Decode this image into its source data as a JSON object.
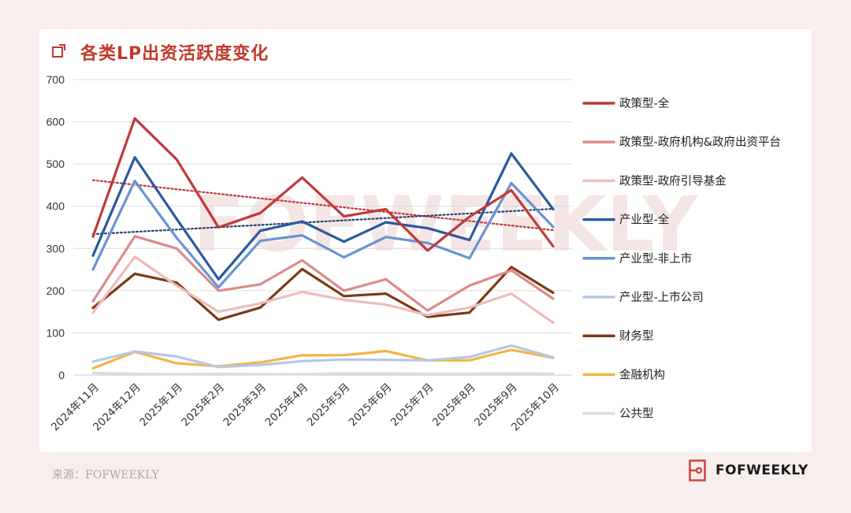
{
  "title": "各类LP出资活跃度变化",
  "source": "来源：FOFWEEKLY",
  "brand": "FOFWEEKLY",
  "watermark": "FOFWEEKLY",
  "chart_data": {
    "type": "line",
    "title": "各类LP出资活跃度变化",
    "x": [
      "2024年11月",
      "2024年12月",
      "2025年1月",
      "2025年2月",
      "2025年3月",
      "2025年4月",
      "2025年5月",
      "2025年6月",
      "2025年7月",
      "2025年8月",
      "2025年9月",
      "2025年10月"
    ],
    "ylim": [
      0,
      700
    ],
    "yticks": [
      0,
      100,
      200,
      300,
      400,
      500,
      600,
      700
    ],
    "grid": true,
    "legend_position": "right",
    "series": [
      {
        "name": "政策型-全",
        "color": "#c0393b",
        "values": [
          328,
          608,
          511,
          350,
          384,
          468,
          376,
          393,
          295,
          375,
          438,
          305
        ]
      },
      {
        "name": "政策型-政府机构&政府出资平台",
        "color": "#dd8b8b",
        "values": [
          175,
          329,
          300,
          200,
          215,
          272,
          200,
          227,
          153,
          212,
          248,
          181
        ]
      },
      {
        "name": "政策型-政府引导基金",
        "color": "#eebcbc",
        "values": [
          148,
          280,
          212,
          150,
          170,
          197,
          178,
          167,
          142,
          160,
          193,
          124
        ]
      },
      {
        "name": "产业型-全",
        "color": "#2a5a9e",
        "values": [
          283,
          516,
          370,
          227,
          342,
          364,
          316,
          362,
          348,
          320,
          525,
          393
        ]
      },
      {
        "name": "产业型-非上市",
        "color": "#6a93d2",
        "values": [
          250,
          460,
          325,
          208,
          318,
          331,
          279,
          327,
          313,
          277,
          455,
          351
        ]
      },
      {
        "name": "产业型-上市公司",
        "color": "#b4c8e6",
        "values": [
          32,
          56,
          44,
          19,
          24,
          33,
          37,
          36,
          35,
          43,
          70,
          42
        ]
      },
      {
        "name": "财务型",
        "color": "#7b3a17",
        "values": [
          159,
          240,
          219,
          131,
          160,
          251,
          187,
          193,
          138,
          148,
          256,
          195
        ]
      },
      {
        "name": "金融机构",
        "color": "#f2b443",
        "values": [
          16,
          55,
          28,
          21,
          30,
          47,
          47,
          57,
          35,
          35,
          60,
          41
        ]
      },
      {
        "name": "公共型",
        "color": "#d8dde5",
        "values": [
          5,
          3,
          2,
          3,
          2,
          2,
          4,
          4,
          3,
          3,
          4,
          3
        ]
      }
    ],
    "trendlines": [
      {
        "series": "政策型-全",
        "color": "#c0393b",
        "style": "dotted"
      },
      {
        "series": "产业型-全",
        "color": "#2a3f6e",
        "style": "dotted"
      }
    ]
  }
}
